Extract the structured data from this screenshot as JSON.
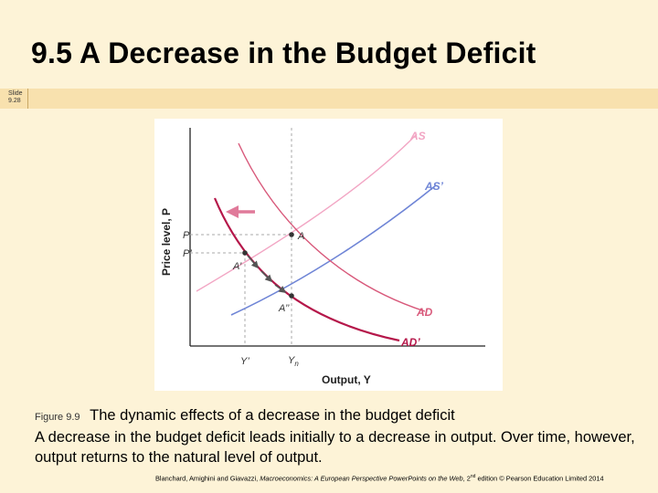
{
  "slide": {
    "title": "9.5  A Decrease in the Budget Deficit",
    "number_label": "Slide",
    "number": "9.28"
  },
  "figure": {
    "y_axis_label": "Price level, P",
    "x_axis_label": "Output, Y",
    "curves": {
      "as": "AS",
      "as_prime": "AS’",
      "ad": "AD",
      "ad_prime": "AD’"
    },
    "points": {
      "a": "A",
      "a_prime": "A’",
      "a_double_prime": "A’’"
    },
    "ticks": {
      "p": "P",
      "p_prime": "P’",
      "y_prime": "Y’",
      "yn": "Y",
      "yn_sub": "n"
    },
    "colors": {
      "as": "#f2a6c4",
      "as_prime": "#6f85d6",
      "ad": "#d8587a",
      "ad_prime": "#b5174a",
      "arrow": "#e07a9a",
      "path": "#555555"
    }
  },
  "caption": {
    "figure_label": "Figure 9.9",
    "figure_title": "The dynamic effects of a decrease in the budget deficit",
    "text": "A decrease in the budget deficit leads initially to a decrease in output. Over time, however, output returns to the natural level of output."
  },
  "credit": {
    "authors": "Blanchard, Amighini and Giavazzi, ",
    "book": "Macroeconomics: A European Perspective PowerPoints on the Web",
    "edition_pre": ", 2",
    "edition_sup": "nd",
    "edition_post": " edition © Pearson Education Limited 2014"
  }
}
